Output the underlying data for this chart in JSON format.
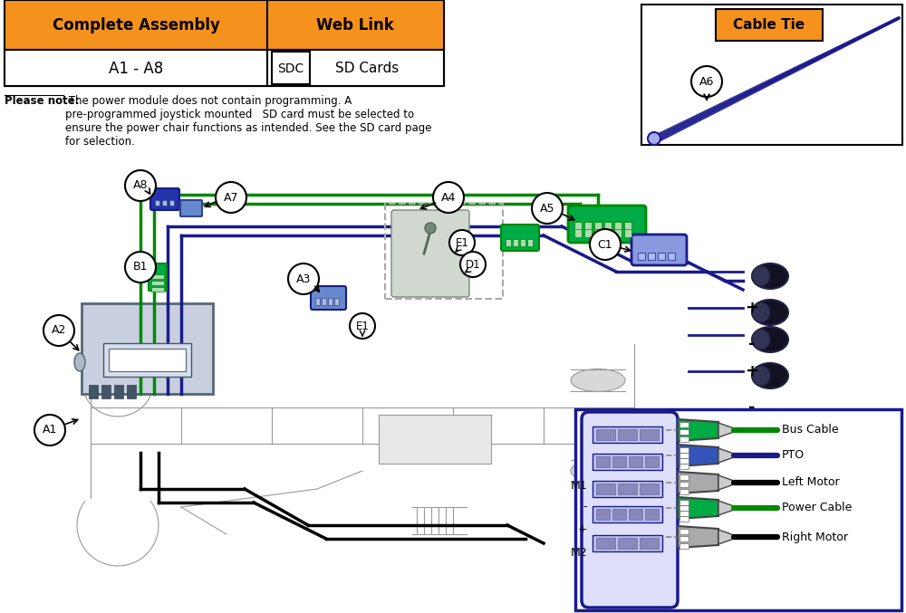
{
  "bg_color": "#ffffff",
  "orange_color": "#F5921E",
  "blue_dark": "#1a1a8c",
  "blue_med": "#4444bb",
  "green_color": "#008800",
  "green_bright": "#00aa00",
  "black_color": "#000000",
  "gray_color": "#888888",
  "light_gray": "#bbbbbb",
  "chassis_gray": "#aaaaaa",
  "header_table": {
    "complete_assembly": "Complete Assembly",
    "web_link": "Web Link",
    "assembly_range": "A1 - A8",
    "sdc": "SDC",
    "sd_cards": "SD Cards"
  },
  "cable_tie_label": "Cable Tie",
  "note_bold": "Please note:",
  "note_text": " The power module does not contain programming. A\npre-programmed joystick mounted   SD card must be selected to\nensure the power chair functions as intended. See the SD card page\nfor selection.",
  "cable_labels": [
    "Bus Cable",
    "PTO",
    "Left Motor",
    "Power Cable",
    "Right Motor"
  ]
}
